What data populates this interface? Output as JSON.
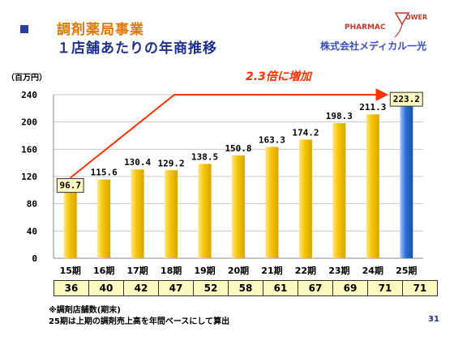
{
  "header": {
    "title_line1": "調剤薬局事業",
    "title_line2": "１店舗あたりの年商推移"
  },
  "logo": {
    "word": "PHARMAC",
    "small": "LOWER",
    "company": "株式会社メディカル一光"
  },
  "unit_label": "（百万円）",
  "annotation": "2.3倍に増加",
  "chart_data": {
    "type": "bar",
    "categories": [
      "15期",
      "16期",
      "17期",
      "18期",
      "19期",
      "20期",
      "21期",
      "22期",
      "23期",
      "24期",
      "25期"
    ],
    "values": [
      96.7,
      115.6,
      130.4,
      129.2,
      138.5,
      150.8,
      163.3,
      174.2,
      198.3,
      211.3,
      223.2
    ],
    "value_labels": [
      "96.7",
      "115.6",
      "130.4",
      "129.2",
      "138.5",
      "150.8",
      "163.3",
      "174.2",
      "198.3",
      "211.3",
      "223.2"
    ],
    "ylim": [
      0,
      240
    ],
    "yticks": [
      "0",
      "40",
      "80",
      "120",
      "160",
      "200",
      "240"
    ],
    "grid": true,
    "colors": {
      "bar": "#f5c400",
      "highlight_bar": "#2a6fd6",
      "arrow": "#ff3300"
    }
  },
  "store_counts": [
    "36",
    "40",
    "42",
    "47",
    "52",
    "58",
    "61",
    "67",
    "69",
    "71",
    "71"
  ],
  "notes": {
    "line1": "※調剤店舗数(期末)",
    "line2": "25期は上期の調剤売上高を年間ベースにして算出"
  },
  "page_number": "31"
}
